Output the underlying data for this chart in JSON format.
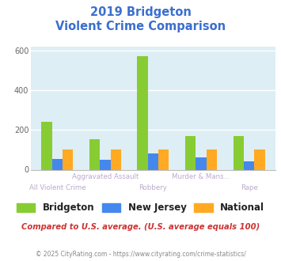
{
  "title_line1": "2019 Bridgeton",
  "title_line2": "Violent Crime Comparison",
  "title_color": "#3a6fcf",
  "categories": [
    "All Violent Crime",
    "Aggravated Assault",
    "Robbery",
    "Murder & Mans...",
    "Rape"
  ],
  "series": {
    "Bridgeton": [
      243,
      152,
      574,
      168,
      168
    ],
    "New Jersey": [
      55,
      48,
      83,
      63,
      40
    ],
    "National": [
      100,
      100,
      100,
      100,
      100
    ]
  },
  "colors": {
    "Bridgeton": "#88cc33",
    "New Jersey": "#4488ee",
    "National": "#ffaa22"
  },
  "ylim": [
    0,
    620
  ],
  "yticks": [
    0,
    200,
    400,
    600
  ],
  "plot_bg_color": "#ddeef5",
  "grid_color": "#ffffff",
  "label_top": [
    "",
    "Aggravated Assault",
    "",
    "Murder & Mans...",
    ""
  ],
  "label_bot": [
    "All Violent Crime",
    "",
    "Robbery",
    "",
    "Rape"
  ],
  "xlabel_color": "#bbaacc",
  "footer_text": "Compared to U.S. average. (U.S. average equals 100)",
  "footer_color": "#cc3333",
  "credit_text": "© 2025 CityRating.com - https://www.cityrating.com/crime-statistics/",
  "credit_color": "#888888",
  "bar_width": 0.22
}
